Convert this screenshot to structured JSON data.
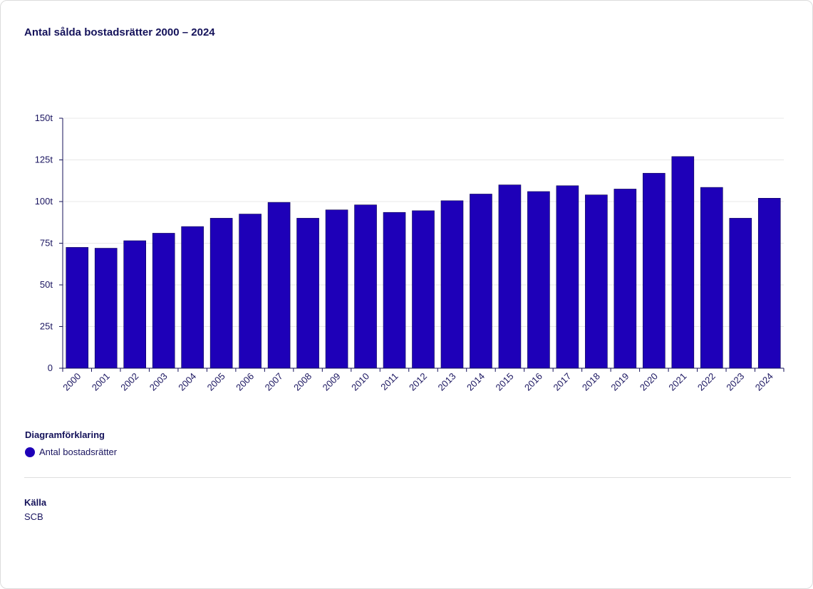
{
  "title": "Antal sålda bostadsrätter 2000 – 2024",
  "legend": {
    "heading": "Diagramförklaring",
    "items": [
      {
        "label": "Antal bostadsrätter",
        "color": "#1e00b8"
      }
    ]
  },
  "source": {
    "heading": "Källa",
    "value": "SCB"
  },
  "colors": {
    "bar": "#1e00b8",
    "axis": "#14125a",
    "grid": "#e8e8e8",
    "text": "#1a1560"
  },
  "chart_data": {
    "type": "bar",
    "categories": [
      "2000",
      "2001",
      "2002",
      "2003",
      "2004",
      "2005",
      "2006",
      "2007",
      "2008",
      "2009",
      "2010",
      "2011",
      "2012",
      "2013",
      "2014",
      "2015",
      "2016",
      "2017",
      "2018",
      "2019",
      "2020",
      "2021",
      "2022",
      "2023",
      "2024"
    ],
    "series": [
      {
        "name": "Antal bostadsrätter",
        "values": [
          72500,
          72000,
          76500,
          81000,
          85000,
          90000,
          92500,
          99500,
          90000,
          95000,
          98000,
          93500,
          94500,
          100500,
          104500,
          110000,
          106000,
          109500,
          104000,
          107500,
          117000,
          127000,
          108500,
          90000,
          102000
        ]
      }
    ],
    "ylim": [
      0,
      150000
    ],
    "yticks": [
      0,
      25000,
      50000,
      75000,
      100000,
      125000,
      150000
    ],
    "ytick_labels": [
      "0",
      "25t",
      "50t",
      "75t",
      "100t",
      "125t",
      "150t"
    ],
    "grid": true,
    "xlabel": "",
    "ylabel": ""
  }
}
